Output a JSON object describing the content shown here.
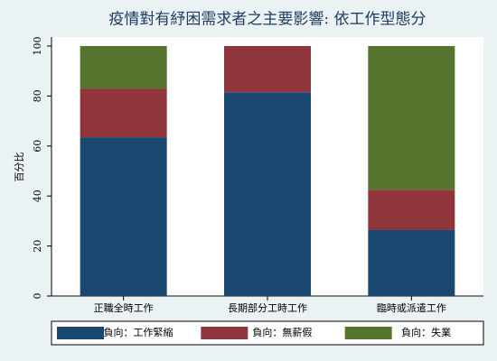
{
  "chart_data": {
    "type": "bar",
    "stacked": true,
    "title": "疫情對有紓困需求者之主要影響: 依工作型態分",
    "y_label": "百分比",
    "categories": [
      "正職全時工作",
      "長期部分工時工作",
      "臨時或派遣工作"
    ],
    "series": [
      {
        "name": "負向：工作緊縮",
        "color": "#1a476f",
        "values": [
          63.5,
          81.5,
          26.5
        ]
      },
      {
        "name": "負向：無薪假",
        "color": "#90353b",
        "values": [
          19.5,
          18.5,
          16
        ]
      },
      {
        "name": "負向：失業",
        "color": "#55752f",
        "values": [
          17,
          0,
          57.5
        ]
      }
    ],
    "ylim": [
      0,
      100
    ],
    "yticks": [
      0,
      20,
      40,
      60,
      80,
      100
    ],
    "grid": false
  }
}
